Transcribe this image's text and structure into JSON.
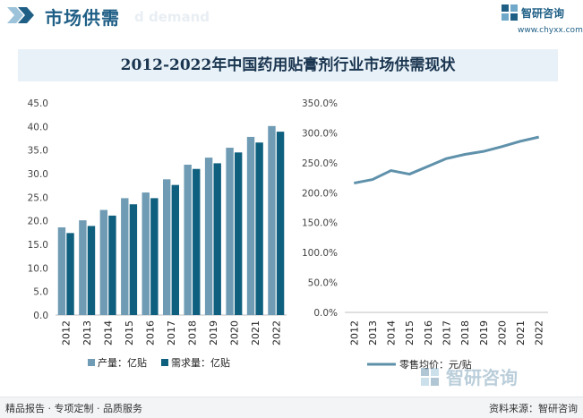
{
  "header": {
    "title": "市场供需",
    "ghost_text": "d demand",
    "logo_name": "智研咨询",
    "logo_site": "www.chyxx.com"
  },
  "title": "2012-2022年中国药用贴膏剂行业市场供需现状",
  "footer": {
    "left": "精品报告 · 专项定制 · 品质服务",
    "right": "资料来源：智研咨询"
  },
  "watermark": {
    "text": "智研咨询"
  },
  "colors": {
    "light": "#6f9bb4",
    "dark": "#0f5f7f",
    "line": "#5f91ab",
    "header": "#1f5f86"
  },
  "chart_data": [
    {
      "type": "bar",
      "categories": [
        "2012",
        "2013",
        "2014",
        "2015",
        "2016",
        "2017",
        "2018",
        "2019",
        "2020",
        "2021",
        "2022"
      ],
      "series": [
        {
          "name": "产量：亿贴",
          "values": [
            18.6,
            20.1,
            22.3,
            24.8,
            26.0,
            28.8,
            31.9,
            33.4,
            35.5,
            37.8,
            40.1
          ]
        },
        {
          "name": "需求量：亿贴",
          "values": [
            17.4,
            18.9,
            21.1,
            23.5,
            24.8,
            27.6,
            31.0,
            32.2,
            34.5,
            36.6,
            38.9
          ]
        }
      ],
      "ylim": [
        0,
        45
      ],
      "yticks": [
        "0.0",
        "5.0",
        "10.0",
        "15.0",
        "20.0",
        "25.0",
        "30.0",
        "35.0",
        "40.0",
        "45.0"
      ],
      "legend_position": "bottom"
    },
    {
      "type": "line",
      "categories": [
        "2012",
        "2013",
        "2014",
        "2015",
        "2016",
        "2017",
        "2018",
        "2019",
        "2020",
        "2021",
        "2022"
      ],
      "series": [
        {
          "name": "零售均价：元/贴",
          "values": [
            2.16,
            2.22,
            2.37,
            2.31,
            2.44,
            2.57,
            2.64,
            2.69,
            2.77,
            2.86,
            2.93
          ]
        }
      ],
      "ylim": [
        0,
        3.5
      ],
      "yticks": [
        "0.0%",
        "50.0%",
        "100.0%",
        "150.0%",
        "200.0%",
        "250.0%",
        "300.0%",
        "350.0%"
      ],
      "legend_position": "bottom"
    }
  ]
}
